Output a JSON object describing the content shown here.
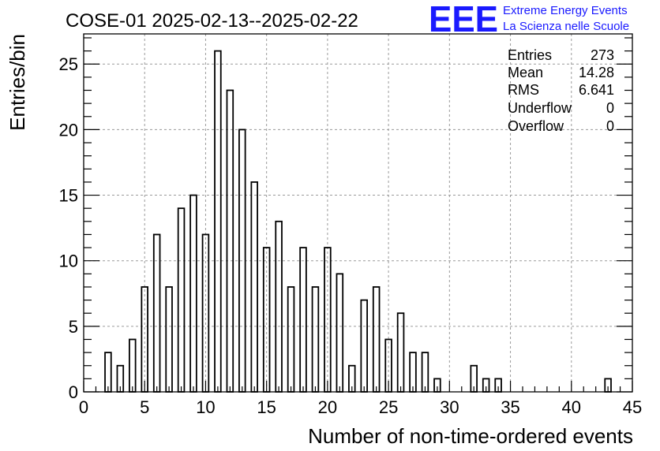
{
  "title": "COSE-01 2025-02-13--2025-02-22",
  "logo": {
    "mark": "EEE",
    "line1": "Extreme Energy Events",
    "line2": "La Scienza nelle Scuole",
    "color": "#1a1aff"
  },
  "stats": [
    {
      "label": "Entries",
      "value": "273"
    },
    {
      "label": "Mean",
      "value": "14.28"
    },
    {
      "label": "RMS",
      "value": "6.641"
    },
    {
      "label": "Underflow",
      "value": "0"
    },
    {
      "label": "Overflow",
      "value": "0"
    }
  ],
  "chart_data": {
    "type": "bar",
    "title": "COSE-01 2025-02-13--2025-02-22",
    "xlabel": "Number of non-time-ordered events",
    "ylabel": "Entries/bin",
    "xlim": [
      0,
      45
    ],
    "ylim": [
      0,
      27.3
    ],
    "x_ticks": [
      "0",
      "5",
      "10",
      "15",
      "20",
      "25",
      "30",
      "35",
      "40",
      "45"
    ],
    "y_ticks": [
      "0",
      "5",
      "10",
      "15",
      "20",
      "25"
    ],
    "grid": true,
    "bar_width": 0.5,
    "x": [
      2,
      3,
      4,
      5,
      6,
      7,
      8,
      9,
      10,
      11,
      12,
      13,
      14,
      15,
      16,
      17,
      18,
      19,
      20,
      21,
      22,
      23,
      24,
      25,
      26,
      27,
      28,
      29,
      32,
      33,
      34,
      43
    ],
    "values": [
      3,
      2,
      4,
      8,
      12,
      8,
      14,
      15,
      12,
      26,
      23,
      20,
      16,
      11,
      13,
      8,
      11,
      8,
      11,
      9,
      2,
      7,
      8,
      4,
      6,
      3,
      3,
      1,
      2,
      1,
      1,
      1
    ],
    "colors": {
      "line": "#000000",
      "grid": "#9a9a9a"
    }
  }
}
